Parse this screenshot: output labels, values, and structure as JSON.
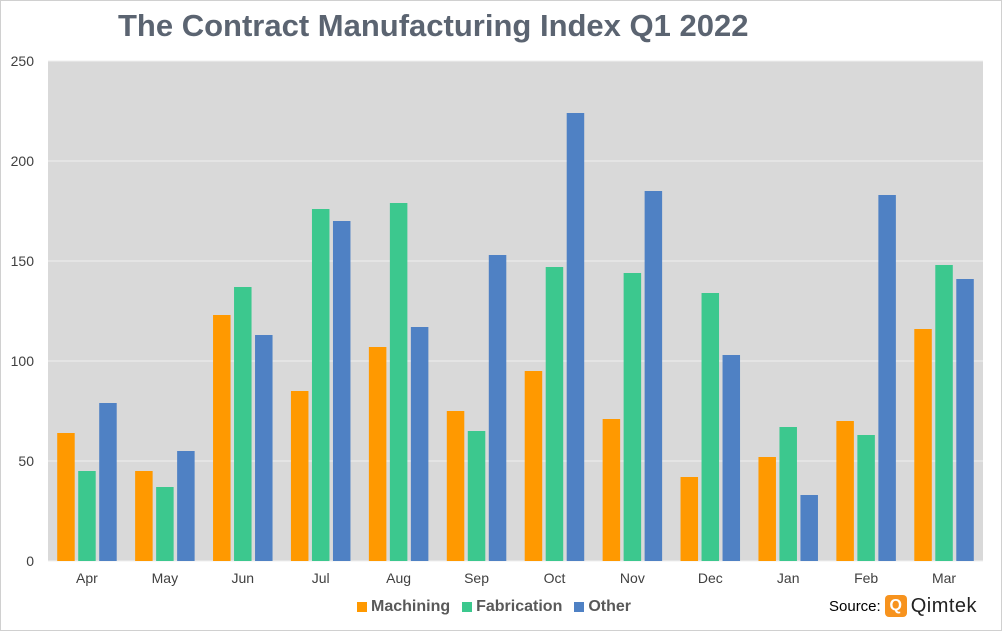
{
  "chart_data": {
    "type": "bar",
    "title": "The Contract Manufacturing Index Q1 2022",
    "categories": [
      "Apr",
      "May",
      "Jun",
      "Jul",
      "Aug",
      "Sep",
      "Oct",
      "Nov",
      "Dec",
      "Jan",
      "Feb",
      "Mar"
    ],
    "series": [
      {
        "name": "Machining",
        "color": "#ff9900",
        "values": [
          64,
          45,
          123,
          85,
          107,
          75,
          95,
          71,
          42,
          52,
          70,
          116
        ]
      },
      {
        "name": "Fabrication",
        "color": "#3cc88e",
        "values": [
          45,
          37,
          137,
          176,
          179,
          65,
          147,
          144,
          134,
          67,
          63,
          148
        ]
      },
      {
        "name": "Other",
        "color": "#4f81c4",
        "values": [
          79,
          55,
          113,
          170,
          117,
          153,
          224,
          185,
          103,
          33,
          183,
          141
        ]
      }
    ],
    "ylim": [
      0,
      250
    ],
    "yticks": [
      0,
      50,
      100,
      150,
      200,
      250
    ],
    "xlabel": "",
    "ylabel": "",
    "grid": true,
    "legend_position": "bottom",
    "plot_background": "#d9d9d9"
  },
  "source": {
    "label": "Source:",
    "logo_letter": "Q",
    "logo_text": "Qimtek"
  }
}
